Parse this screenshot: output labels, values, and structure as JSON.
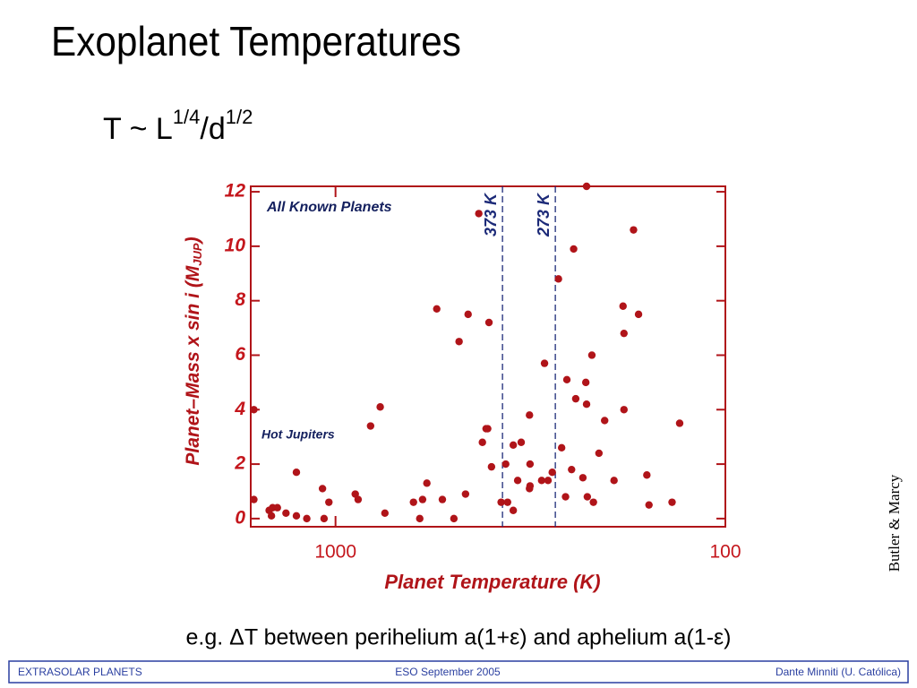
{
  "title": "Exoplanet Temperatures",
  "formula": {
    "base": "T ~ L",
    "exp1": "1/4",
    "mid": "/d",
    "exp2": "1/2"
  },
  "chart_data": {
    "type": "scatter",
    "x_label": "Planet Temperature  (K)",
    "y_label": {
      "main": "Planet–Mass x sin i  (M",
      "sub": "JUP",
      "end": ")"
    },
    "annotations": [
      "All Known Planets",
      "Hot Jupiters"
    ],
    "vlines": [
      {
        "value": 373,
        "label": "373 K"
      },
      {
        "value": 273,
        "label": "273 K"
      }
    ],
    "vline_color": "#1c2a78",
    "color": "#b01419",
    "xscale": "log",
    "grid": false,
    "xlim": [
      1650,
      100
    ],
    "ylim": [
      -0.3,
      12.2
    ],
    "xticks": [
      1000,
      100
    ],
    "yticks": [
      0,
      2,
      4,
      6,
      8,
      10,
      12
    ],
    "x": [
      1620,
      1620,
      1480,
      1450,
      1410,
      1460,
      1340,
      1260,
      1260,
      1185,
      1080,
      1070,
      1040,
      890,
      875,
      813,
      768,
      747,
      631,
      608,
      598,
      583,
      550,
      532,
      497,
      482,
      464,
      457,
      429,
      420,
      411,
      407,
      404,
      398,
      376,
      366,
      362,
      350,
      350,
      334,
      341,
      317,
      318,
      317,
      318,
      296,
      291,
      285,
      278,
      268,
      263,
      257,
      255,
      248,
      245,
      242,
      232,
      228,
      227,
      227,
      226,
      220,
      218,
      211,
      204,
      193,
      183,
      182,
      182,
      172,
      167,
      159,
      157,
      137,
      131
    ],
    "values": [
      4.0,
      0.7,
      0.3,
      0.4,
      0.4,
      0.1,
      0.2,
      1.7,
      0.1,
      0.0,
      1.1,
      0.0,
      0.6,
      0.9,
      0.7,
      3.4,
      4.1,
      0.2,
      0.6,
      0.0,
      0.7,
      1.3,
      7.7,
      0.7,
      0.0,
      6.5,
      0.9,
      7.5,
      11.2,
      2.8,
      3.3,
      3.3,
      7.2,
      1.9,
      0.6,
      2.0,
      0.6,
      0.3,
      2.7,
      2.8,
      1.4,
      2.0,
      1.1,
      1.2,
      3.8,
      1.4,
      5.7,
      1.4,
      1.7,
      8.8,
      2.6,
      0.8,
      5.1,
      1.8,
      9.9,
      4.4,
      1.5,
      5.0,
      12.2,
      4.2,
      0.8,
      6.0,
      0.6,
      2.4,
      3.6,
      1.4,
      7.8,
      4.0,
      6.8,
      10.6,
      7.5,
      1.6,
      0.5,
      0.6,
      3.5
    ]
  },
  "credit": "Butler & Marcy",
  "caption": "e.g. ΔT between perihelium a(1+ε) and aphelium a(1-ε)",
  "footer": {
    "left": "EXTRASOLAR PLANETS",
    "center": "ESO  September 2005",
    "right": "Dante Minniti (U. Católica)"
  }
}
